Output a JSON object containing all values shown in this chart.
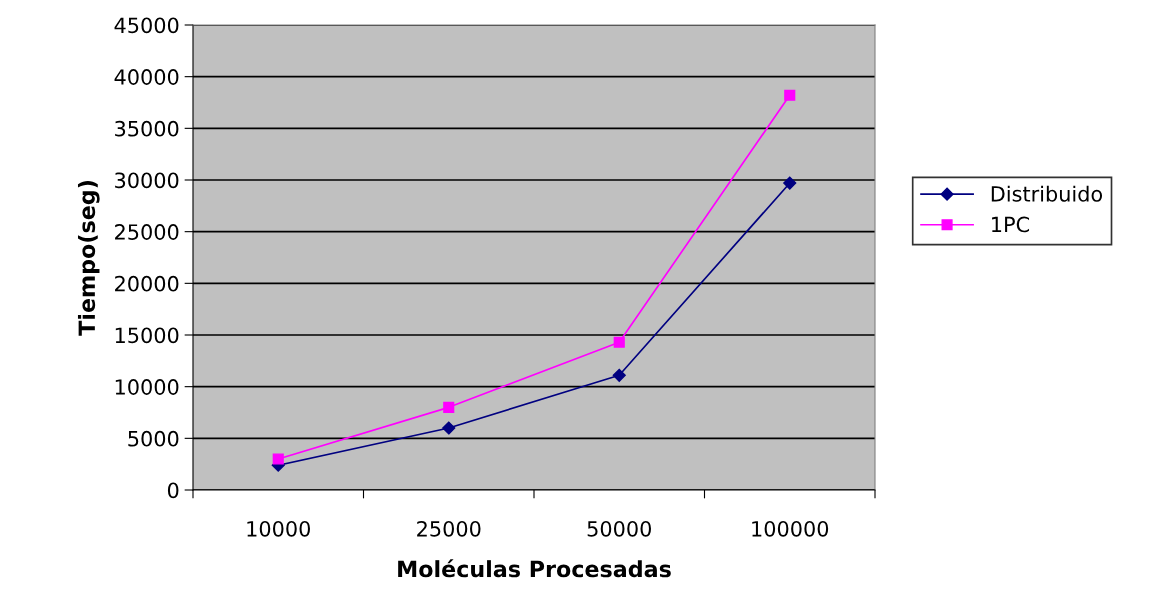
{
  "chart_data": {
    "type": "line",
    "xlabel": "Moléculas Procesadas",
    "ylabel": "Tiempo(seg)",
    "categories": [
      "10000",
      "25000",
      "50000",
      "100000"
    ],
    "series": [
      {
        "name": "Distribuido",
        "color": "#000080",
        "marker": "diamond",
        "values": [
          2400,
          6000,
          11100,
          29700
        ]
      },
      {
        "name": "1PC",
        "color": "#ff00ff",
        "marker": "square",
        "values": [
          3000,
          8000,
          14300,
          38200
        ]
      }
    ],
    "ylim": [
      0,
      45000
    ],
    "yticks": [
      0,
      5000,
      10000,
      15000,
      20000,
      25000,
      30000,
      35000,
      40000,
      45000
    ],
    "grid": "y",
    "legend": "right"
  }
}
